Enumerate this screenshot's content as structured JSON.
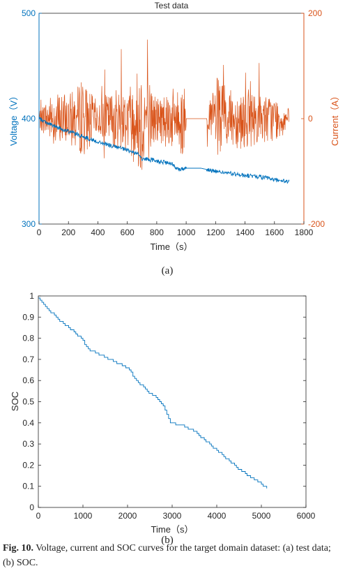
{
  "caption": {
    "label": "Fig. 10.",
    "text": "Voltage, current and SOC curves for the target domain dataset: (a) test data; (b) SOC."
  },
  "colors": {
    "voltage": "#0072BD",
    "current": "#D95319",
    "axis": "#262626"
  },
  "chart_data": [
    {
      "type": "line",
      "title": "Test data",
      "subcaption": "(a)",
      "xlabel": "Time（s）",
      "ylabel_left": "Voltage（V）",
      "ylabel_right": "Current（A）",
      "xlim": [
        0,
        1800
      ],
      "ylim_left": [
        300,
        500
      ],
      "ylim_right": [
        -200,
        200
      ],
      "xticks": [
        "0",
        "200",
        "400",
        "600",
        "800",
        "1000",
        "1200",
        "1400",
        "1600",
        "1800"
      ],
      "yticks_left": [
        "300",
        "400",
        "500"
      ],
      "yticks_right": [
        "-200",
        "0",
        "200"
      ],
      "grid": false,
      "series": [
        {
          "axis": "left",
          "x": [
            0,
            100,
            200,
            300,
            400,
            500,
            600,
            680,
            700,
            800,
            900,
            950,
            1000,
            1100,
            1200,
            1300,
            1400,
            1500,
            1600,
            1700
          ],
          "y": [
            400,
            393,
            388,
            383,
            378,
            374,
            370,
            366,
            362,
            360,
            357,
            352,
            353,
            353,
            350,
            348,
            346,
            345,
            342,
            340
          ]
        },
        {
          "axis": "right",
          "x": [
            0,
            100,
            200,
            300,
            400,
            500,
            600,
            700,
            800,
            900,
            950,
            980,
            1000,
            1100,
            1150,
            1200,
            1300,
            1400,
            1500,
            1600,
            1700
          ],
          "y": [
            0,
            40,
            -30,
            60,
            15,
            -40,
            50,
            100,
            -30,
            45,
            -40,
            80,
            0,
            0,
            0,
            70,
            -40,
            45,
            -30,
            30,
            0
          ]
        }
      ]
    },
    {
      "type": "line",
      "subcaption": "(b)",
      "xlabel": "Time（s）",
      "ylabel": "SOC",
      "xlim": [
        0,
        6000
      ],
      "ylim": [
        0,
        1
      ],
      "xticks": [
        "0",
        "1000",
        "2000",
        "3000",
        "4000",
        "5000",
        "6000"
      ],
      "yticks": [
        "0",
        "0.1",
        "0.2",
        "0.3",
        "0.4",
        "0.5",
        "0.6",
        "0.7",
        "0.8",
        "0.9",
        "1"
      ],
      "grid": false,
      "series": [
        {
          "x": [
            0,
            250,
            500,
            800,
            1000,
            1100,
            1500,
            2000,
            2200,
            2500,
            2700,
            2850,
            2950,
            3200,
            3500,
            4000,
            4500,
            5000,
            5150
          ],
          "y": [
            0.99,
            0.93,
            0.88,
            0.83,
            0.79,
            0.75,
            0.71,
            0.66,
            0.6,
            0.54,
            0.51,
            0.46,
            0.4,
            0.39,
            0.36,
            0.27,
            0.18,
            0.11,
            0.09
          ]
        }
      ]
    }
  ]
}
